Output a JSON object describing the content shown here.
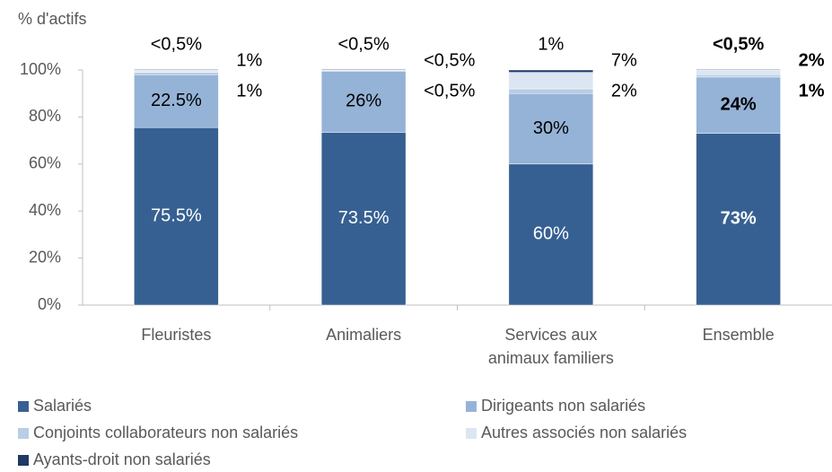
{
  "chart_data": {
    "type": "stacked_bar",
    "y_axis_label": "% d'actifs",
    "categories": [
      "Fleuristes",
      "Animaliers",
      "Services aux animaux familiers",
      "Ensemble"
    ],
    "bold_labels": [
      false,
      false,
      false,
      true
    ],
    "ylim": [
      0,
      100
    ],
    "yticks": [
      {
        "value": 0,
        "label": "0%"
      },
      {
        "value": 20,
        "label": "20%"
      },
      {
        "value": 40,
        "label": "40%"
      },
      {
        "value": 60,
        "label": "60%"
      },
      {
        "value": 80,
        "label": "80%"
      },
      {
        "value": 100,
        "label": "100%"
      }
    ],
    "series": [
      {
        "name": "Salariés",
        "color": "#376092",
        "values": [
          75.5,
          73.5,
          60,
          73
        ],
        "value_labels": [
          "75.5%",
          "73.5%",
          "60%",
          "73%"
        ]
      },
      {
        "name": "Dirigeants non salariés",
        "color": "#95b3d7",
        "values": [
          22.5,
          26,
          30,
          24
        ],
        "value_labels": [
          "22.5%",
          "26%",
          "30%",
          "24%"
        ]
      },
      {
        "name": "Conjoints collaborateurs  non salariés",
        "color": "#b9cde5",
        "values": [
          1,
          0.3,
          2,
          1
        ],
        "value_labels": [
          "1%",
          "<0,5%",
          "2%",
          "1%"
        ]
      },
      {
        "name": "Autres associés non salariés",
        "color": "#dce6f2",
        "values": [
          1,
          0.3,
          7,
          2
        ],
        "value_labels": [
          "1%",
          "<0,5%",
          "7%",
          "2%"
        ]
      },
      {
        "name": "Ayants-droit non salariés",
        "color": "#1f3864",
        "values": [
          0.3,
          0.3,
          1,
          0.3
        ],
        "value_labels": [
          "<0,5%",
          "<0,5%",
          "1%",
          "<0,5%"
        ]
      }
    ]
  }
}
